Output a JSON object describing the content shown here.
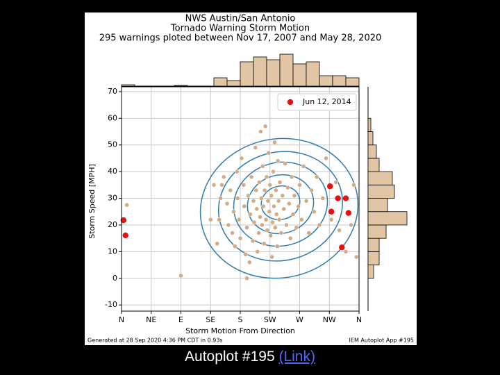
{
  "chart_data": {
    "type": "scatter",
    "title": [
      "NWS Austin/San Antonio",
      "Tornado Warning Storm Motion",
      "295 warnings ploted between Nov 17, 2007 and May 28, 2020"
    ],
    "xlabel": "Storm Motion From Direction",
    "ylabel": "Storm Speed [MPH]",
    "xlim": [
      0,
      360
    ],
    "xticks": [
      {
        "value": 0,
        "label": "N"
      },
      {
        "value": 45,
        "label": "NE"
      },
      {
        "value": 90,
        "label": "E"
      },
      {
        "value": 135,
        "label": "SE"
      },
      {
        "value": 180,
        "label": "S"
      },
      {
        "value": 225,
        "label": "SW"
      },
      {
        "value": 270,
        "label": "W"
      },
      {
        "value": 315,
        "label": "NW"
      },
      {
        "value": 360,
        "label": "N"
      }
    ],
    "ylim": [
      -12.3,
      71.8
    ],
    "yticks": [
      -10,
      0,
      10,
      20,
      30,
      40,
      50,
      60,
      70
    ],
    "grid": true,
    "legend": "upper right",
    "series": [
      {
        "color": "#d2ab84",
        "x": [
          8,
          90,
          135,
          140,
          145,
          148,
          150,
          152,
          155,
          160,
          162,
          165,
          168,
          170,
          172,
          175,
          176,
          178,
          180,
          182,
          185,
          186,
          188,
          190,
          190,
          192,
          194,
          195,
          197,
          199,
          200,
          201,
          203,
          204,
          205,
          206,
          208,
          209,
          210,
          211,
          212,
          213,
          214,
          215,
          216,
          217,
          218,
          219,
          220,
          221,
          222,
          223,
          224,
          225,
          226,
          227,
          228,
          229,
          230,
          231,
          232,
          233,
          234,
          235,
          236,
          237,
          238,
          239,
          240,
          242,
          244,
          246,
          248,
          250,
          252,
          254,
          256,
          258,
          260,
          262,
          265,
          268,
          270,
          273,
          276,
          280,
          284,
          288,
          292,
          296,
          300,
          305,
          310,
          318,
          325,
          330,
          340,
          348,
          352,
          356
        ],
        "values": [
          27.5,
          1,
          22,
          35,
          13,
          22,
          30,
          35,
          38,
          28,
          20,
          33,
          17,
          25,
          12,
          40,
          30,
          22,
          15,
          45,
          35,
          27,
          9,
          19,
          0,
          31,
          6,
          24,
          38,
          14,
          29,
          21,
          49,
          33,
          26,
          10,
          17,
          36,
          23,
          55,
          30,
          20,
          42,
          27,
          13,
          33,
          57,
          22,
          38,
          18,
          29,
          47,
          25,
          35,
          16,
          31,
          8,
          21,
          40,
          27,
          51,
          19,
          33,
          24,
          12,
          44,
          29,
          22,
          36,
          17,
          31,
          26,
          43,
          20,
          34,
          28,
          15,
          38,
          24,
          31,
          19,
          27,
          35,
          22,
          42,
          29,
          17,
          33,
          25,
          38,
          20,
          30,
          45,
          22,
          36,
          18,
          10,
          20,
          35,
          8
        ]
      },
      {
        "name": "Jun 12, 2014",
        "color": "#e8100e",
        "x": [
          3,
          6,
          316,
          318,
          328,
          340,
          344,
          334
        ],
        "values": [
          21.8,
          16.1,
          34.5,
          25,
          30,
          30,
          24.5,
          11.6
        ]
      }
    ],
    "x_histogram": {
      "color": "#e1c5a5",
      "bins": [
        0,
        20,
        40,
        60,
        80,
        100,
        120,
        140,
        160,
        180,
        200,
        220,
        240,
        260,
        280,
        300,
        320,
        340,
        360
      ],
      "counts": [
        2,
        0,
        0,
        0,
        1,
        0,
        0,
        12,
        8,
        35,
        42,
        38,
        46,
        32,
        35,
        15,
        15,
        12
      ],
      "countlim": [
        0,
        46
      ]
    },
    "y_histogram": {
      "color": "#e1c5a5",
      "bins": [
        0,
        5,
        10,
        15,
        20,
        25,
        30,
        35,
        40,
        45,
        50,
        55,
        60
      ],
      "counts": [
        8,
        16,
        16,
        26,
        56,
        28,
        38,
        35,
        16,
        12,
        7,
        4
      ],
      "countlim": [
        0,
        56
      ]
    },
    "footer_left": "Generated at 28 Sep 2020 4:36 PM CDT in 0.93s",
    "footer_right": "IEM Autoplot App #195"
  },
  "caption": {
    "text": "Autoplot #195",
    "link": "(Link)"
  }
}
